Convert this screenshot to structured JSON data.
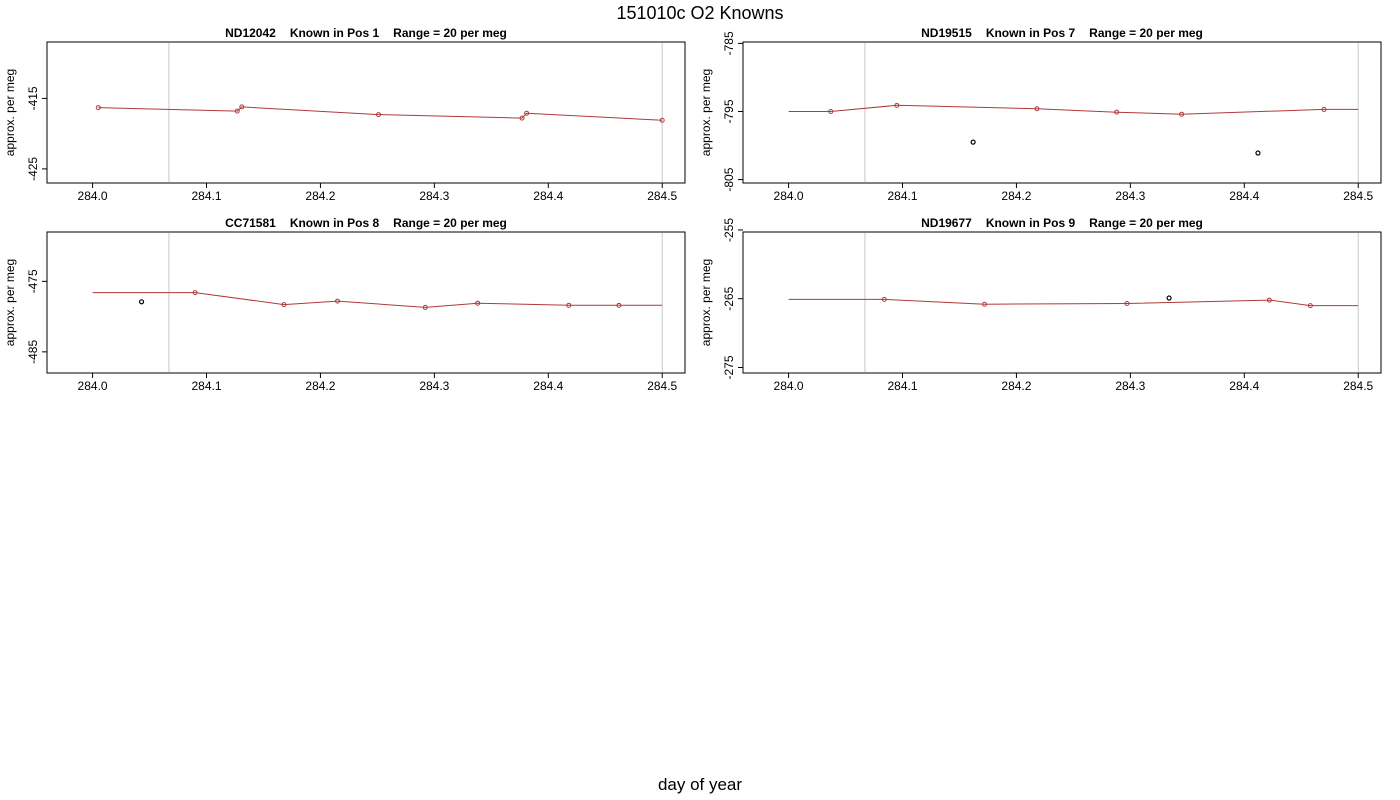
{
  "title": "151010c   O2 Knowns",
  "xlabel": "day of year",
  "colors": {
    "line": "#b03a3a",
    "raw_point": "#000000",
    "frame": "#000000",
    "vline": "#c8c8c8"
  },
  "chart_data": [
    {
      "type": "line",
      "title_parts": [
        "ND12042",
        "Known in Pos 1",
        "Range = 20 per meg"
      ],
      "ylabel": "approx. per meg",
      "xlim": [
        283.96,
        284.52
      ],
      "ylim": [
        -427,
        -407
      ],
      "xticks": [
        284.0,
        284.1,
        284.2,
        284.3,
        284.4,
        284.5
      ],
      "yticks": [
        -415,
        -425
      ],
      "vlines": [
        284.067,
        284.5
      ],
      "series": [
        {
          "style": "line",
          "x": [
            284.005,
            284.127,
            284.131,
            284.251,
            284.377,
            284.381,
            284.5
          ],
          "y": [
            -416.3,
            -416.8,
            -416.2,
            -417.3,
            -417.8,
            -417.1,
            -418.1
          ]
        }
      ],
      "outliers": {
        "x": [],
        "y": []
      }
    },
    {
      "type": "line",
      "title_parts": [
        "ND19515",
        "Known in Pos 7",
        "Range = 20 per meg"
      ],
      "ylabel": "approx. per meg",
      "xlim": [
        283.96,
        284.52
      ],
      "ylim": [
        -805.5,
        -784.8
      ],
      "xticks": [
        284.0,
        284.1,
        284.2,
        284.3,
        284.4,
        284.5
      ],
      "yticks": [
        -785,
        -795,
        -805
      ],
      "vlines": [
        284.067,
        284.5
      ],
      "series": [
        {
          "style": "line",
          "x": [
            284.0,
            284.037,
            284.095,
            284.218,
            284.288,
            284.345,
            284.47,
            284.5
          ],
          "y": [
            -795.0,
            -795.0,
            -794.1,
            -794.6,
            -795.1,
            -795.4,
            -794.7,
            -794.7
          ]
        }
      ],
      "outliers": {
        "x": [
          284.162,
          284.412
        ],
        "y": [
          -799.5,
          -801.1
        ]
      }
    },
    {
      "type": "line",
      "title_parts": [
        "CC71581",
        "Known in Pos 8",
        "Range = 20 per meg"
      ],
      "ylabel": "approx. per meg",
      "xlim": [
        283.96,
        284.52
      ],
      "ylim": [
        -488,
        -468
      ],
      "xticks": [
        284.0,
        284.1,
        284.2,
        284.3,
        284.4,
        284.5
      ],
      "yticks": [
        -475,
        -485
      ],
      "vlines": [
        284.067,
        284.5
      ],
      "series": [
        {
          "style": "line",
          "x": [
            284.0,
            284.09,
            284.168,
            284.215,
            284.292,
            284.338,
            284.418,
            284.462,
            284.5
          ],
          "y": [
            -476.6,
            -476.6,
            -478.3,
            -477.8,
            -478.7,
            -478.1,
            -478.4,
            -478.4,
            -478.4
          ]
        }
      ],
      "outliers": {
        "x": [
          284.043
        ],
        "y": [
          -477.9
        ]
      }
    },
    {
      "type": "line",
      "title_parts": [
        "ND19677",
        "Known in Pos 9",
        "Range = 20 per meg"
      ],
      "ylabel": "approx. per meg",
      "xlim": [
        283.96,
        284.52
      ],
      "ylim": [
        -275.8,
        -255.3
      ],
      "xticks": [
        284.0,
        284.1,
        284.2,
        284.3,
        284.4,
        284.5
      ],
      "yticks": [
        -255,
        -265,
        -275
      ],
      "vlines": [
        284.067,
        284.5
      ],
      "series": [
        {
          "style": "line",
          "x": [
            284.0,
            284.084,
            284.172,
            284.297,
            284.422,
            284.458,
            284.5
          ],
          "y": [
            -265.1,
            -265.1,
            -265.8,
            -265.7,
            -265.2,
            -266.0,
            -266.0
          ]
        }
      ],
      "outliers": {
        "x": [
          284.334
        ],
        "y": [
          -264.9
        ]
      }
    }
  ]
}
